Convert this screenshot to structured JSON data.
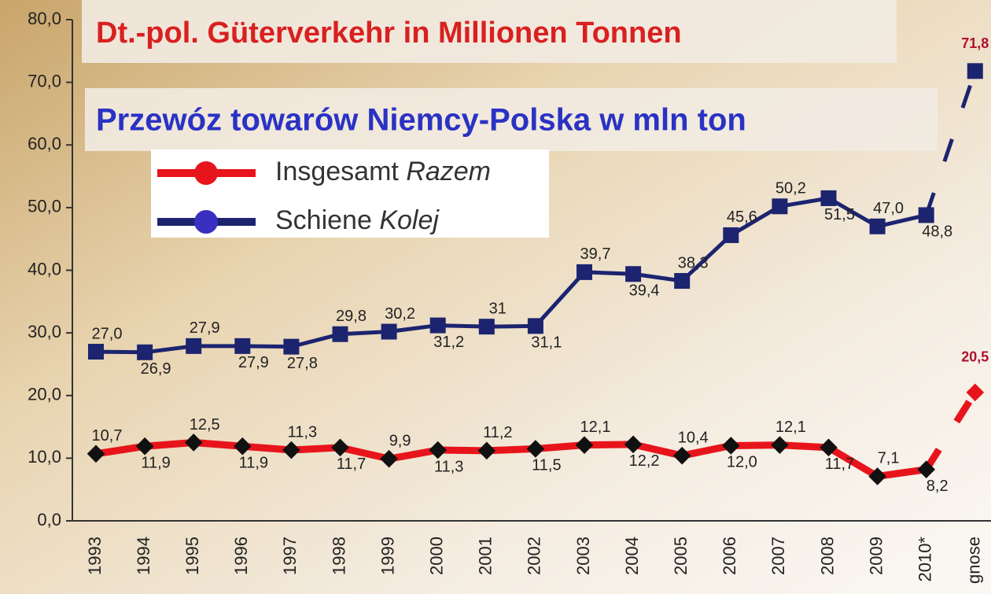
{
  "chart_data": {
    "type": "line",
    "title": "Dt.-pol. Güterverkehr in Millionen Tonnen",
    "subtitle": "Przewóz towarów Niemcy-Polska w mln ton",
    "categories": [
      "1993",
      "1994",
      "1995",
      "1996",
      "1997",
      "1998",
      "1999",
      "2000",
      "2001",
      "2002",
      "2003",
      "2004",
      "2005",
      "2006",
      "2007",
      "2008",
      "2009",
      "2010*",
      "gnose"
    ],
    "series": [
      {
        "name": "Insgesamt",
        "name_pl": "Razem",
        "color": "#e8141b",
        "marker_color": "#111111",
        "values": [
          10.7,
          11.9,
          12.5,
          11.9,
          11.3,
          11.7,
          9.9,
          11.3,
          11.2,
          11.5,
          12.1,
          12.2,
          10.4,
          12.0,
          12.1,
          11.7,
          7.1,
          8.2,
          20.5
        ],
        "value_labels": [
          "10,7",
          "11,9",
          "12,5",
          "11,9",
          "11,3",
          "11,7",
          "9,9",
          "11,3",
          "11,2",
          "11,5",
          "12,1",
          "12,2",
          "10,4",
          "12,0",
          "12,1",
          "11,7",
          "7,1",
          "8,2",
          "20,5"
        ]
      },
      {
        "name": "Schiene",
        "name_pl": "Kolej",
        "color": "#1c2470",
        "marker_color": "#1c2470",
        "values": [
          27.0,
          26.9,
          27.9,
          27.9,
          27.8,
          29.8,
          30.2,
          31.2,
          31,
          31.1,
          39.7,
          39.4,
          38.3,
          45.6,
          50.2,
          51.5,
          47.0,
          48.8,
          71.8
        ],
        "value_labels": [
          "27,0",
          "26,9",
          "27,9",
          "27,9",
          "27,8",
          "29,8",
          "30,2",
          "31,2",
          "31",
          "31,1",
          "39,7",
          "39,4",
          "38,3",
          "45,6",
          "50,2",
          "51,5",
          "47,0",
          "48,8",
          "71,8"
        ]
      }
    ],
    "ylim": [
      0,
      80
    ],
    "yticks": [
      {
        "value": 0,
        "label": "0,0"
      },
      {
        "value": 10,
        "label": "10,0"
      },
      {
        "value": 20,
        "label": "20,0"
      },
      {
        "value": 30,
        "label": "30,0"
      },
      {
        "value": 40,
        "label": "40,0"
      },
      {
        "value": 50,
        "label": "50,0"
      },
      {
        "value": 60,
        "label": "60,0"
      },
      {
        "value": 70,
        "label": "70,0"
      },
      {
        "value": 80,
        "label": "80,0"
      }
    ]
  }
}
